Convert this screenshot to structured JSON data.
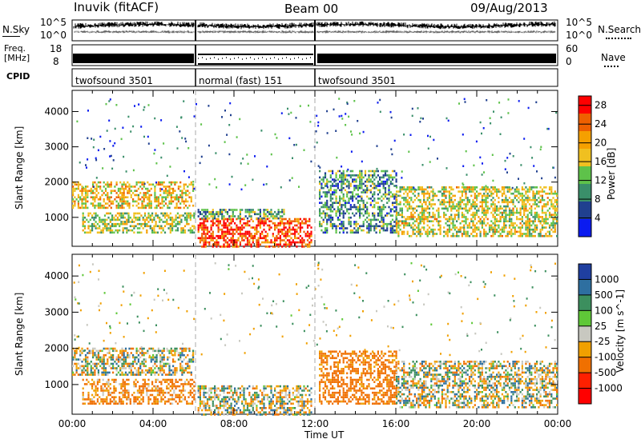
{
  "header": {
    "station": "Inuvik (fitACF)",
    "beam": "Beam 00",
    "date": "09/Aug/2013"
  },
  "left_labels": {
    "nsky": "N.Sky",
    "nsky_top": "10^5",
    "nsky_bottom": "10^0",
    "freq_line1": "Freq.",
    "freq_line2": "[MHz]",
    "freq_top": "18",
    "freq_bottom": "8",
    "cpid": "CPID"
  },
  "right_labels": {
    "nsearch": "N.Search",
    "nsearch_top": "10^5",
    "nsearch_bottom": "10^0",
    "nave": "Nave",
    "nave_top": "60",
    "nave_bottom": "0"
  },
  "cpid_segments": [
    {
      "label": "twofsound 3501",
      "start_hour": 0,
      "end_hour": 6.1
    },
    {
      "label": "normal (fast) 151",
      "start_hour": 6.1,
      "end_hour": 12.0
    },
    {
      "label": "twofsound 3501",
      "start_hour": 12.0,
      "end_hour": 24
    }
  ],
  "colors": {
    "power_scale": [
      "#0b1bf0",
      "#20408f",
      "#3a8f6a",
      "#5ec24a",
      "#f0c020",
      "#f5a000",
      "#ee6000",
      "#ff0000"
    ],
    "velocity_scale": [
      "#1f3fa0",
      "#2e6fa0",
      "#3c8f5e",
      "#5fc838",
      "#c8c8c0",
      "#f0a000",
      "#f07000",
      "#ff2000",
      "#ff0000"
    ]
  },
  "chart_data": [
    {
      "type": "heatmap",
      "name": "power",
      "xlabel": "Time UT",
      "ylabel": "Slant Range [km]",
      "xlim": [
        0,
        24
      ],
      "ylim": [
        180,
        4600
      ],
      "x_ticks": [
        "00:00",
        "04:00",
        "08:00",
        "12:00",
        "16:00",
        "20:00",
        "00:00"
      ],
      "y_ticks": [
        1000,
        2000,
        3000,
        4000
      ],
      "colorbar": {
        "label": "Power [dB]",
        "ticks": [
          4,
          8,
          12,
          16,
          20,
          24,
          28
        ],
        "range": [
          0,
          30
        ]
      },
      "scatter_bands": [
        {
          "t_start": 0.0,
          "t_end": 6.0,
          "r_start": 1300,
          "r_end": 2050,
          "level": 18
        },
        {
          "t_start": 0.5,
          "t_end": 6.0,
          "r_start": 600,
          "r_end": 1200,
          "level": 15
        },
        {
          "t_start": 6.2,
          "t_end": 11.8,
          "r_start": 200,
          "r_end": 1000,
          "level": 26
        },
        {
          "t_start": 6.2,
          "t_end": 10.5,
          "r_start": 1000,
          "r_end": 1300,
          "level": 12
        },
        {
          "t_start": 12.2,
          "t_end": 16.0,
          "r_start": 600,
          "r_end": 2400,
          "level": 10
        },
        {
          "t_start": 16.0,
          "t_end": 24.0,
          "r_start": 500,
          "r_end": 1900,
          "level": 16
        }
      ]
    },
    {
      "type": "heatmap",
      "name": "velocity",
      "xlabel": "Time UT",
      "ylabel": "Slant Range [km]",
      "xlim": [
        0,
        24
      ],
      "ylim": [
        180,
        4600
      ],
      "x_ticks": [
        "00:00",
        "04:00",
        "08:00",
        "12:00",
        "16:00",
        "20:00",
        "00:00"
      ],
      "y_ticks": [
        1000,
        2000,
        3000,
        4000
      ],
      "colorbar": {
        "label": "Velocity [m s^-1]",
        "ticks": [
          "1000",
          "500",
          "100",
          "25",
          "-25",
          "-100",
          "-500",
          "-1000"
        ]
      },
      "scatter_bands": [
        {
          "t_start": 0.0,
          "t_end": 6.0,
          "r_start": 1300,
          "r_end": 2050,
          "level": 0
        },
        {
          "t_start": 0.5,
          "t_end": 6.0,
          "r_start": 500,
          "r_end": 1200,
          "level": -150
        },
        {
          "t_start": 6.2,
          "t_end": 11.8,
          "r_start": 200,
          "r_end": 1000,
          "level": 5
        },
        {
          "t_start": 12.2,
          "t_end": 16.0,
          "r_start": 500,
          "r_end": 2000,
          "level": -200
        },
        {
          "t_start": 16.0,
          "t_end": 24.0,
          "r_start": 400,
          "r_end": 1700,
          "level": 0
        }
      ]
    }
  ]
}
